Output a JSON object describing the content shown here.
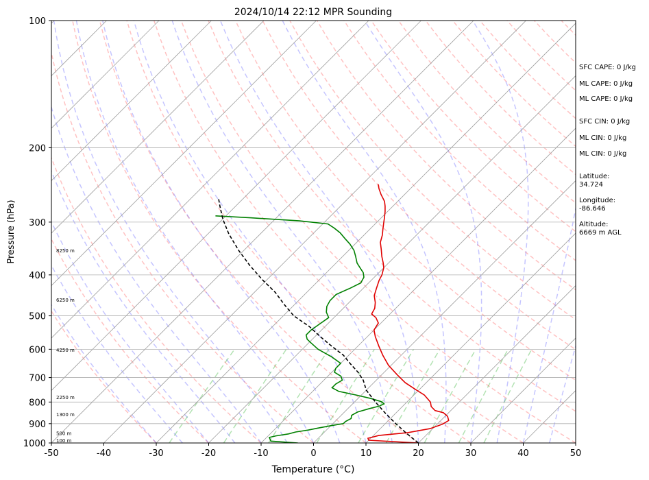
{
  "chart_data": {
    "type": "skew-t",
    "title": "2024/10/14 22:12 MPR Sounding",
    "xlabel": "Temperature (°C)",
    "ylabel": "Pressure (hPa)",
    "xlim": [
      -50,
      50
    ],
    "ylim": [
      1000,
      100
    ],
    "y_scale": "log",
    "x_ticks": [
      -50,
      -40,
      -30,
      -20,
      -10,
      0,
      10,
      20,
      30,
      40,
      50
    ],
    "y_ticks": [
      100,
      200,
      300,
      400,
      500,
      600,
      700,
      800,
      900,
      1000
    ],
    "grid": "horizontal at pressure ticks",
    "series": [
      {
        "color": "#e00000",
        "points": [
          [
            20,
            1000
          ],
          [
            10,
            985
          ],
          [
            9.5,
            975
          ],
          [
            11,
            960
          ],
          [
            16,
            945
          ],
          [
            19.5,
            925
          ],
          [
            21,
            903
          ],
          [
            21.5,
            885
          ],
          [
            20.5,
            865
          ],
          [
            19,
            848
          ],
          [
            17,
            838
          ],
          [
            15.5,
            820
          ],
          [
            14.5,
            800
          ],
          [
            12,
            770
          ],
          [
            9,
            745
          ],
          [
            6,
            720
          ],
          [
            3,
            690
          ],
          [
            -0.5,
            655
          ],
          [
            -3.5,
            620
          ],
          [
            -6,
            590
          ],
          [
            -8.5,
            560
          ],
          [
            -10,
            540
          ],
          [
            -10.5,
            520
          ],
          [
            -12,
            505
          ],
          [
            -13.5,
            495
          ],
          [
            -14,
            480
          ],
          [
            -15,
            465
          ],
          [
            -16.5,
            448
          ],
          [
            -17.5,
            430
          ],
          [
            -18.5,
            412
          ],
          [
            -19,
            400
          ],
          [
            -20,
            385
          ],
          [
            -21,
            375
          ],
          [
            -22.5,
            362
          ],
          [
            -24,
            348
          ],
          [
            -25.5,
            335
          ],
          [
            -26.5,
            322
          ],
          [
            -27.5,
            312
          ],
          [
            -28.5,
            302
          ],
          [
            -29.5,
            292
          ],
          [
            -30.5,
            283
          ],
          [
            -31.5,
            275
          ],
          [
            -32.5,
            268
          ],
          [
            -34.5,
            258
          ],
          [
            -36,
            250
          ],
          [
            -37,
            244
          ]
        ]
      },
      {
        "color": "#008000",
        "points": [
          [
            -3,
            1000
          ],
          [
            -8.5,
            990
          ],
          [
            -9,
            980
          ],
          [
            -9.5,
            970
          ],
          [
            -8.5,
            962
          ],
          [
            -6.5,
            952
          ],
          [
            -5.5,
            942
          ],
          [
            -3.5,
            932
          ],
          [
            -2,
            922
          ],
          [
            0,
            910
          ],
          [
            2,
            900
          ],
          [
            2,
            890
          ],
          [
            2.5,
            875
          ],
          [
            2,
            860
          ],
          [
            2.5,
            845
          ],
          [
            4,
            830
          ],
          [
            5.5,
            818
          ],
          [
            6,
            808
          ],
          [
            5,
            798
          ],
          [
            2.5,
            785
          ],
          [
            -1,
            770
          ],
          [
            -5,
            755
          ],
          [
            -7,
            740
          ],
          [
            -7,
            725
          ],
          [
            -6.5,
            710
          ],
          [
            -7.5,
            695
          ],
          [
            -9.5,
            680
          ],
          [
            -10,
            665
          ],
          [
            -10,
            648
          ],
          [
            -13,
            625
          ],
          [
            -17,
            600
          ],
          [
            -19.5,
            580
          ],
          [
            -21,
            568
          ],
          [
            -22,
            555
          ],
          [
            -22,
            540
          ],
          [
            -21.5,
            522
          ],
          [
            -21,
            505
          ],
          [
            -22.5,
            490
          ],
          [
            -23.5,
            475
          ],
          [
            -24,
            460
          ],
          [
            -24,
            445
          ],
          [
            -22.5,
            430
          ],
          [
            -21.5,
            418
          ],
          [
            -22,
            405
          ],
          [
            -23,
            395
          ],
          [
            -24.5,
            385
          ],
          [
            -26,
            375
          ],
          [
            -27.5,
            362
          ],
          [
            -29,
            350
          ],
          [
            -31,
            338
          ],
          [
            -33,
            328
          ],
          [
            -35,
            318
          ],
          [
            -37,
            310
          ],
          [
            -39,
            303
          ],
          [
            -45,
            298
          ],
          [
            -55,
            293
          ],
          [
            -62,
            290
          ]
        ]
      },
      {
        "color": "#000000",
        "dashed": true,
        "points": [
          [
            20,
            1000
          ],
          [
            16,
            950
          ],
          [
            12,
            900
          ],
          [
            8,
            850
          ],
          [
            4,
            800
          ],
          [
            0,
            750
          ],
          [
            -2.5,
            710
          ],
          [
            -5,
            680
          ],
          [
            -8,
            650
          ],
          [
            -11,
            620
          ],
          [
            -15,
            590
          ],
          [
            -19,
            560
          ],
          [
            -23,
            530
          ],
          [
            -28,
            500
          ],
          [
            -32,
            470
          ],
          [
            -36,
            440
          ],
          [
            -41,
            410
          ],
          [
            -46,
            380
          ],
          [
            -51,
            350
          ],
          [
            -56,
            320
          ],
          [
            -60,
            295
          ],
          [
            -63,
            275
          ],
          [
            -65,
            262
          ]
        ]
      }
    ],
    "height_labels": [
      {
        "pressure": 1000,
        "label": "100 m"
      },
      {
        "pressure": 961,
        "label": "500 m"
      },
      {
        "pressure": 867,
        "label": "1300 m"
      },
      {
        "pressure": 790,
        "label": "2250 m"
      },
      {
        "pressure": 610,
        "label": "4250 m"
      },
      {
        "pressure": 465,
        "label": "6250 m"
      },
      {
        "pressure": 355,
        "label": "8250 m"
      }
    ]
  },
  "info": {
    "sfc_cape": "SFC CAPE: 0 J/kg",
    "ml_cape_1": "ML CAPE: 0 J/kg",
    "ml_cape_2": "ML CAPE: 0 J/kg",
    "sfc_cin": "SFC CIN: 0 J/kg",
    "ml_cin_1": "ML CIN: 0 J/kg",
    "ml_cin_2": "ML CIN: 0 J/kg",
    "latitude_label": "Latitude:",
    "latitude_value": "34.724",
    "longitude_label": "Longitude:",
    "longitude_value": "-86.646",
    "altitude_label": "Altitude:",
    "altitude_value": "6669 m AGL"
  }
}
